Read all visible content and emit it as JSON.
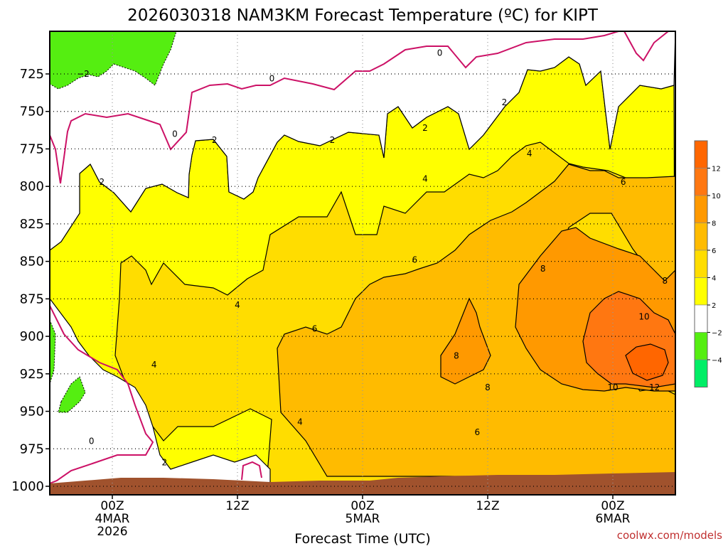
{
  "title": "2026030318 NAM3KM Forecast Temperature (ºC) for KIPT",
  "credit": "coolwx.com/models",
  "colors": {
    "lt_m2": "#ffffff",
    "m2_0": "#ffffff",
    "band_m4_m2": "#55ee11",
    "band_0_2": "#ffffff",
    "band_2_4": "#ffff00",
    "band_4_6": "#ffdd00",
    "band_6_8": "#ffbb00",
    "band_8_10": "#ff9900",
    "band_10_12": "#ff7711",
    "band_gt12": "#ff6600",
    "zero_line": "#cc1166",
    "ground": "#a0522d"
  },
  "chart_data": {
    "type": "contour",
    "xlabel": "Forecast Time (UTC)",
    "ylabel": "",
    "x_ticks": [
      {
        "hours": 6,
        "lines": [
          "00Z",
          "4MAR",
          "2026"
        ]
      },
      {
        "hours": 18,
        "lines": [
          "12Z"
        ]
      },
      {
        "hours": 30,
        "lines": [
          "00Z",
          "5MAR"
        ]
      },
      {
        "hours": 42,
        "lines": [
          "12Z"
        ]
      },
      {
        "hours": 54,
        "lines": [
          "00Z",
          "6MAR"
        ]
      }
    ],
    "xlim_hours": [
      0,
      60
    ],
    "y_ticks": [
      725,
      750,
      775,
      800,
      825,
      850,
      875,
      900,
      925,
      950,
      975,
      1000
    ],
    "ylim_hPa": [
      700,
      1000
    ],
    "y_scale": "pressure (inverted)",
    "grid": true,
    "colorbar": {
      "labels": [
        "12",
        "10",
        "8",
        "6",
        "4",
        "2",
        "−2",
        "−4"
      ],
      "colors": [
        "#ff6600",
        "#ff7711",
        "#ff9900",
        "#ffbb00",
        "#ffdd00",
        "#ffff00",
        "#ffffff",
        "#55ee11",
        "#00ee66"
      ]
    },
    "contours": [
      {
        "level": 0,
        "pressure_hPa": [
          740,
          745,
          735,
          730,
          725,
          720,
          715,
          715
        ],
        "label_positions_hours": [
          12,
          33
        ]
      },
      {
        "level": 2,
        "pressure_hPa": [
          780,
          780,
          770,
          765,
          760,
          750,
          740,
          730
        ],
        "label_positions_hours": [
          5,
          15,
          25,
          35,
          43
        ]
      },
      {
        "level": 4,
        "pressure_hPa": [
          855,
          870,
          870,
          845,
          820,
          800,
          780,
          765
        ],
        "label_positions_hours": [
          4,
          18,
          24,
          36,
          46
        ]
      },
      {
        "level": 6,
        "pressure_hPa": [
          990,
          990,
          890,
          885,
          860,
          840,
          810,
          800
        ],
        "label_positions_hours": [
          21,
          35,
          45,
          55
        ]
      },
      {
        "level": 8,
        "pressure_hPa": [
          900,
          900,
          915,
          900,
          870,
          850,
          840,
          845
        ],
        "label_positions_hours": [
          39,
          41,
          47,
          59
        ]
      },
      {
        "level": 10,
        "pressure_hPa": [
          890,
          905,
          930,
          920,
          885,
          875
        ],
        "label_positions_hours": [
          54,
          57
        ]
      },
      {
        "level": 12,
        "pressure_hPa": [
          905,
          920
        ],
        "label_positions_hours": [
          58
        ]
      }
    ],
    "contour_labels": [
      {
        "text": "0",
        "hours": 12.0,
        "hPa": 765
      },
      {
        "text": "0",
        "hours": 21.3,
        "hPa": 728
      },
      {
        "text": "0",
        "hours": 37.4,
        "hPa": 711
      },
      {
        "text": "0",
        "hours": 4.0,
        "hPa": 970
      },
      {
        "text": "−2",
        "hours": 3.2,
        "hPa": 725
      },
      {
        "text": "2",
        "hours": 5.0,
        "hPa": 797
      },
      {
        "text": "2",
        "hours": 15.8,
        "hPa": 769
      },
      {
        "text": "2",
        "hours": 27.1,
        "hPa": 769
      },
      {
        "text": "2",
        "hours": 36.0,
        "hPa": 761
      },
      {
        "text": "2",
        "hours": 43.6,
        "hPa": 744
      },
      {
        "text": "2",
        "hours": 11.0,
        "hPa": 984
      },
      {
        "text": "4",
        "hours": 18.0,
        "hPa": 879
      },
      {
        "text": "4",
        "hours": 24.0,
        "hPa": 957
      },
      {
        "text": "4",
        "hours": 10.0,
        "hPa": 919
      },
      {
        "text": "4",
        "hours": 36.0,
        "hPa": 795
      },
      {
        "text": "4",
        "hours": 46.0,
        "hPa": 778
      },
      {
        "text": "6",
        "hours": 25.4,
        "hPa": 895
      },
      {
        "text": "6",
        "hours": 35.0,
        "hPa": 849
      },
      {
        "text": "6",
        "hours": 41.0,
        "hPa": 964
      },
      {
        "text": "6",
        "hours": 55.0,
        "hPa": 797
      },
      {
        "text": "8",
        "hours": 39.0,
        "hPa": 913
      },
      {
        "text": "8",
        "hours": 42.0,
        "hPa": 934
      },
      {
        "text": "8",
        "hours": 47.3,
        "hPa": 855
      },
      {
        "text": "8",
        "hours": 59.0,
        "hPa": 863
      },
      {
        "text": "10",
        "hours": 54.0,
        "hPa": 934
      },
      {
        "text": "10",
        "hours": 57.0,
        "hPa": 887
      },
      {
        "text": "12",
        "hours": 58.0,
        "hPa": 934
      }
    ]
  }
}
